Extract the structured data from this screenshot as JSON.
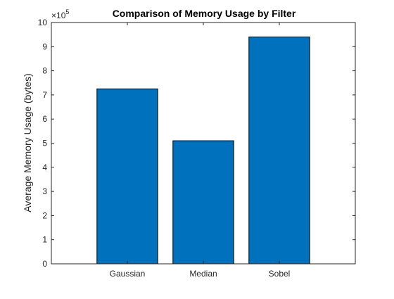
{
  "chart_data": {
    "type": "bar",
    "title": "Comparison of Memory Usage by Filter",
    "xlabel": "",
    "ylabel": "Average Memory Usage (bytes)",
    "exponent_label": "10",
    "exponent_power": "5",
    "exponent_prefix": "×",
    "categories": [
      "Gaussian",
      "Median",
      "Sobel"
    ],
    "values": [
      725000,
      510000,
      940000
    ],
    "ylim": [
      0,
      1000000
    ],
    "yticks": [
      0,
      1,
      2,
      3,
      4,
      5,
      6,
      7,
      8,
      9,
      10
    ],
    "xlim": [
      0,
      4
    ],
    "grid": false,
    "colors": {
      "bar": "#0072BD",
      "bar_edge": "#000000",
      "axis": "#262626"
    }
  }
}
